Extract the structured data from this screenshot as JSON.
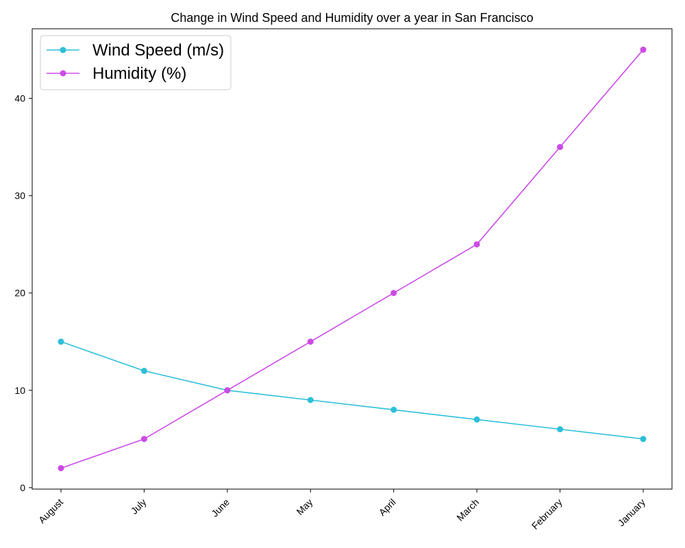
{
  "chart_data": {
    "type": "line",
    "title": "Change in Wind Speed and Humidity over a year in San Francisco",
    "xlabel": "",
    "ylabel": "",
    "categories": [
      "August",
      "July",
      "June",
      "May",
      "April",
      "March",
      "February",
      "January"
    ],
    "y_ticks": [
      0,
      10,
      20,
      30,
      40
    ],
    "ylim": [
      -0.15,
      47.15
    ],
    "grid": false,
    "legend_position": "top-left",
    "series": [
      {
        "name": "Wind Speed (m/s)",
        "color": "#2dbfd9",
        "values": [
          15,
          12,
          10,
          9,
          8,
          7,
          6,
          5
        ]
      },
      {
        "name": "Humidity (%)",
        "color": "#cc4ae8",
        "values": [
          2,
          5,
          10,
          15,
          20,
          25,
          35,
          45
        ]
      }
    ]
  }
}
